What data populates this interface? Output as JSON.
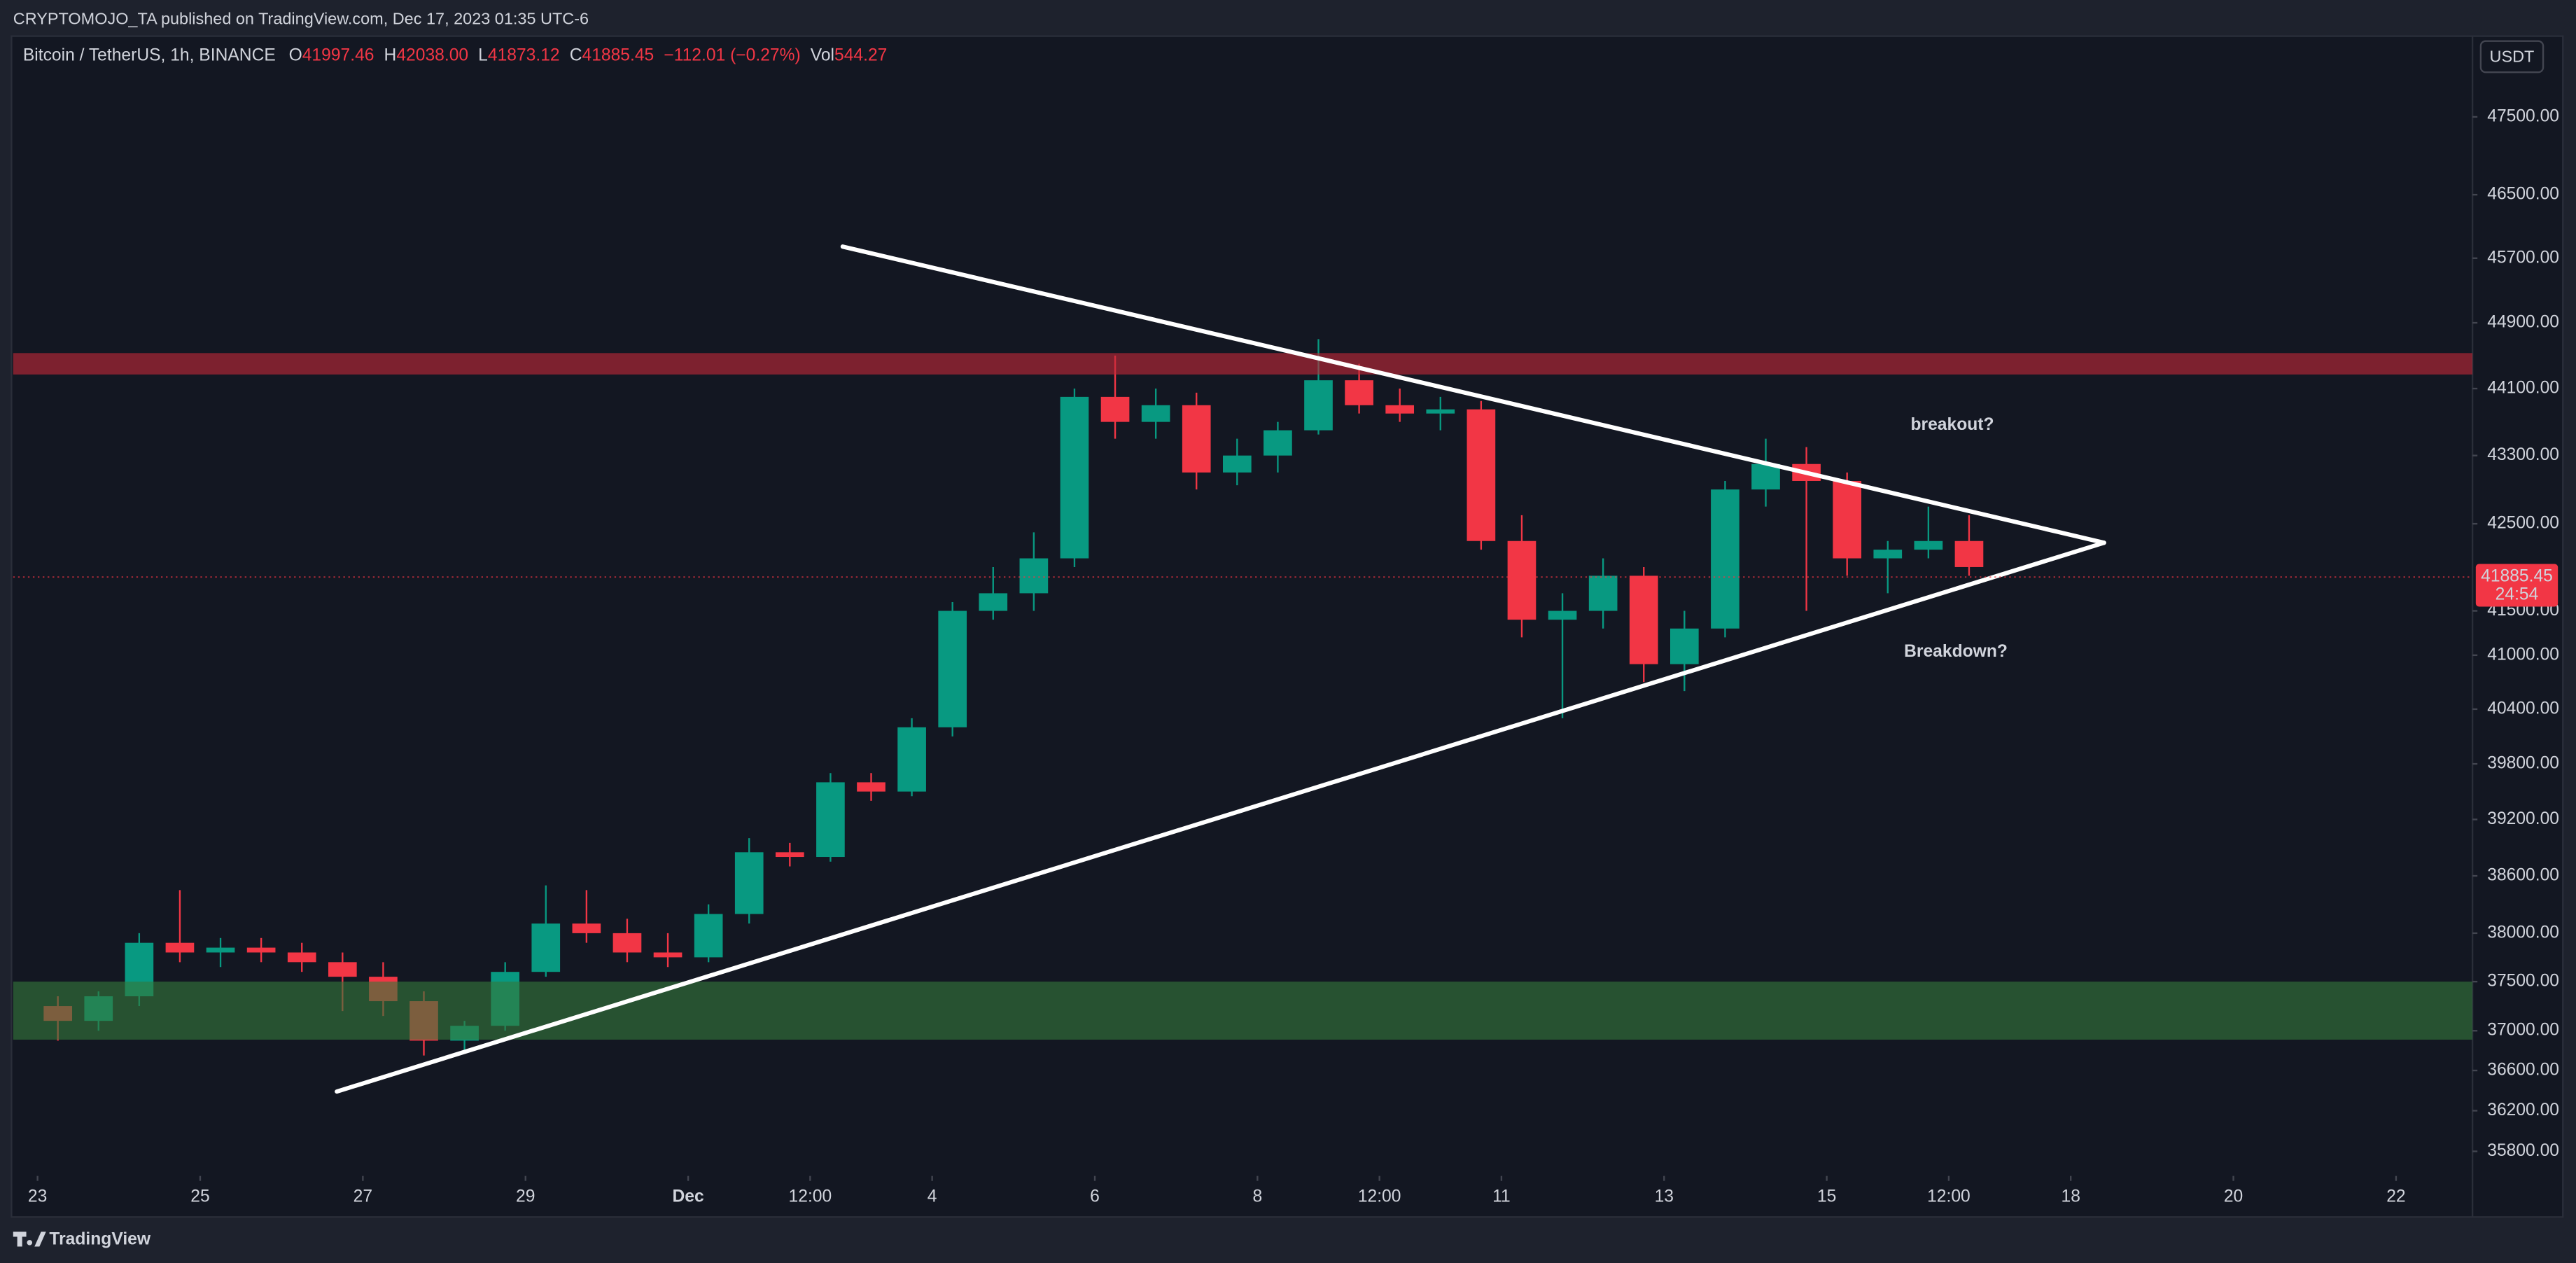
{
  "header": "CRYPTOMOJO_TA published on TradingView.com, Dec 17, 2023 01:35 UTC-6",
  "brand": "TradingView",
  "chart_data": {
    "type": "candlestick",
    "symbol": "Bitcoin / TetherUS, 1h, BINANCE",
    "ohlc": [
      {
        "label": "O",
        "value": "41997.46"
      },
      {
        "label": "H",
        "value": "42038.00"
      },
      {
        "label": "L",
        "value": "41873.12"
      },
      {
        "label": "C",
        "value": "41885.45"
      }
    ],
    "change": "−112.01 (−0.27%)",
    "volume": {
      "label": "Vol",
      "value": "544.27"
    },
    "currency": "USDT",
    "last_price": {
      "value": 41885.45,
      "countdown": "24:54"
    },
    "log_scale": true,
    "grid": false,
    "up_color": "#089981",
    "down_color": "#f23645",
    "candles": {
      "x": [
        22,
        22.5,
        23,
        23.5,
        24,
        24.5,
        25,
        25.5,
        26,
        26.5,
        27,
        27.5,
        28,
        28.5,
        29,
        29.5,
        30,
        30.5,
        31,
        31.5,
        32,
        32.5,
        33,
        33.5,
        34,
        34.5,
        35,
        35.5,
        36,
        36.5,
        37,
        37.5,
        38,
        38.5,
        39,
        39.5,
        40,
        40.5,
        41,
        41.5,
        42,
        42.5,
        43,
        43.5,
        44,
        44.5,
        45,
        45.5
      ],
      "open": [
        37250,
        37100,
        37350,
        37900,
        37800,
        37850,
        37800,
        37700,
        37550,
        37300,
        36900,
        37050,
        37600,
        38100,
        38000,
        37800,
        37750,
        38200,
        38850,
        38800,
        39600,
        39500,
        40200,
        41500,
        41700,
        42100,
        44000,
        43700,
        43900,
        43100,
        43300,
        43600,
        44200,
        43900,
        43800,
        43850,
        42300,
        41400,
        41500,
        41900,
        40900,
        41300,
        42900,
        43200,
        43000,
        42100,
        42200,
        42300
      ],
      "high": [
        37350,
        37400,
        38000,
        38450,
        37950,
        37950,
        37900,
        37800,
        37700,
        37400,
        37100,
        37700,
        38500,
        38450,
        38150,
        38000,
        38300,
        39000,
        38950,
        39700,
        39700,
        40300,
        41600,
        42000,
        42400,
        44100,
        44500,
        44100,
        44050,
        43500,
        43700,
        44700,
        44400,
        44100,
        44000,
        43950,
        42600,
        41700,
        42100,
        42000,
        41500,
        43000,
        43500,
        43400,
        43100,
        42300,
        42700,
        42600
      ],
      "low": [
        36900,
        37000,
        37250,
        37700,
        37650,
        37700,
        37600,
        37200,
        37150,
        36750,
        36800,
        37000,
        37550,
        37900,
        37700,
        37650,
        37700,
        38100,
        38700,
        38750,
        39400,
        39450,
        40100,
        41400,
        41500,
        42000,
        43500,
        43500,
        42900,
        42950,
        43100,
        43550,
        43800,
        43700,
        43600,
        42200,
        41200,
        40300,
        41300,
        40700,
        40600,
        41200,
        42700,
        41500,
        41900,
        41700,
        42100,
        41900
      ],
      "close": [
        37100,
        37350,
        37900,
        37800,
        37850,
        37800,
        37700,
        37550,
        37300,
        36900,
        37050,
        37600,
        38100,
        38000,
        37800,
        37750,
        38200,
        38850,
        38800,
        39600,
        39500,
        40200,
        41500,
        41700,
        42100,
        44000,
        43700,
        43900,
        43100,
        43300,
        43600,
        44200,
        43900,
        43800,
        43850,
        42300,
        41400,
        41500,
        41900,
        40900,
        41300,
        42900,
        43200,
        43000,
        42100,
        42200,
        42300,
        42000
      ]
    },
    "zones": [
      {
        "from": 44270,
        "to": 44530,
        "color": "rgba(190,40,55,0.62)"
      },
      {
        "from": 36910,
        "to": 37500,
        "color": "rgba(52,120,58,0.62)"
      }
    ],
    "trendlines": [
      {
        "x": [
          31.9,
          47.41
        ],
        "y": [
          45845,
          42280
        ],
        "color": "#ffffff"
      },
      {
        "x": [
          25.68,
          47.41
        ],
        "y": [
          36390,
          42280
        ],
        "color": "#ffffff"
      }
    ],
    "annotations": [
      "breakout?",
      "Breakdown?"
    ],
    "annotation_color": "#f7931a",
    "xlim": [
      21.7,
      51.94
    ],
    "xticks": [
      {
        "value": 22,
        "label": "23"
      },
      {
        "value": 24,
        "label": "25"
      },
      {
        "value": 26,
        "label": "27"
      },
      {
        "value": 28,
        "label": "29"
      },
      {
        "value": 30,
        "label": "Dec"
      },
      {
        "value": 31.5,
        "label": "12:00"
      },
      {
        "value": 33,
        "label": "4"
      },
      {
        "value": 35,
        "label": "6"
      },
      {
        "value": 37,
        "label": "8"
      },
      {
        "value": 38.5,
        "label": "12:00"
      },
      {
        "value": 40,
        "label": "11"
      },
      {
        "value": 42,
        "label": "13"
      },
      {
        "value": 44,
        "label": "15"
      },
      {
        "value": 45.5,
        "label": "12:00"
      },
      {
        "value": 47,
        "label": "18"
      },
      {
        "value": 49,
        "label": "20"
      },
      {
        "value": 51,
        "label": "22"
      }
    ],
    "ylim": [
      35560,
      48560
    ],
    "yticks": [
      {
        "value": 47500,
        "label": "47500.00"
      },
      {
        "value": 46500,
        "label": "46500.00"
      },
      {
        "value": 45700,
        "label": "45700.00"
      },
      {
        "value": 44900,
        "label": "44900.00"
      },
      {
        "value": 44100,
        "label": "44100.00"
      },
      {
        "value": 43300,
        "label": "43300.00"
      },
      {
        "value": 42500,
        "label": "42500.00"
      },
      {
        "value": 41500,
        "label": "41500.00"
      },
      {
        "value": 41000,
        "label": "41000.00"
      },
      {
        "value": 40400,
        "label": "40400.00"
      },
      {
        "value": 39800,
        "label": "39800.00"
      },
      {
        "value": 39200,
        "label": "39200.00"
      },
      {
        "value": 38600,
        "label": "38600.00"
      },
      {
        "value": 38000,
        "label": "38000.00"
      },
      {
        "value": 37500,
        "label": "37500.00"
      },
      {
        "value": 37000,
        "label": "37000.00"
      },
      {
        "value": 36600,
        "label": "36600.00"
      },
      {
        "value": 36200,
        "label": "36200.00"
      },
      {
        "value": 35800,
        "label": "35800.00"
      }
    ]
  }
}
